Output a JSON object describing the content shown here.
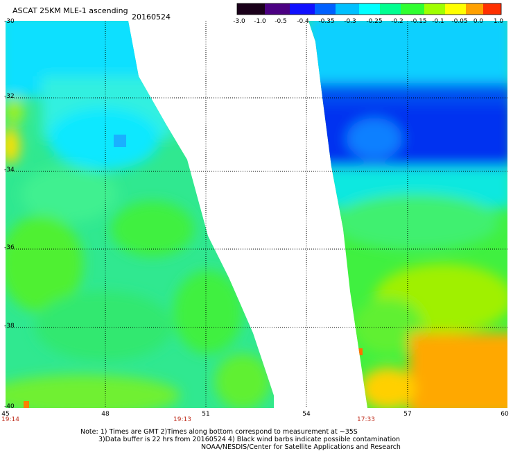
{
  "title": "ASCAT 25KM MLE-1 ascending",
  "date": "20160524",
  "colorbar": {
    "labels": [
      "-3.0",
      "-1.0",
      "-0.5",
      "-0.4",
      "-0.35",
      "-0.3",
      "-0.25",
      "-0.2",
      "-0.15",
      "-0.1",
      "-0.05",
      "0.0",
      "1.0"
    ],
    "colors": [
      "#1a001a",
      "#4b0082",
      "#7b00c8",
      "#0000ff",
      "#0050ff",
      "#00a0ff",
      "#00ffff",
      "#00ff80",
      "#40ff00",
      "#a0ff00",
      "#ffff00",
      "#ffa000",
      "#ff5000",
      "#ff0000"
    ]
  },
  "latitudes": [
    "-30",
    "-32",
    "-34",
    "-36",
    "-38",
    "-40"
  ],
  "longitudes": [
    "45",
    "48",
    "51",
    "54",
    "57",
    "60"
  ],
  "times": [
    "19:14",
    "19:13",
    "17:33"
  ],
  "notes": {
    "line1": "Note: 1) Times are GMT 2)Times along bottom correspond to measurement at ~35S",
    "line2": "3)Data buffer is 22 hrs from 20160524 4) Black wind barbs indicate possible contamination",
    "credit": "NOAA/NESDIS/Center for Satellite Applications and Research"
  }
}
